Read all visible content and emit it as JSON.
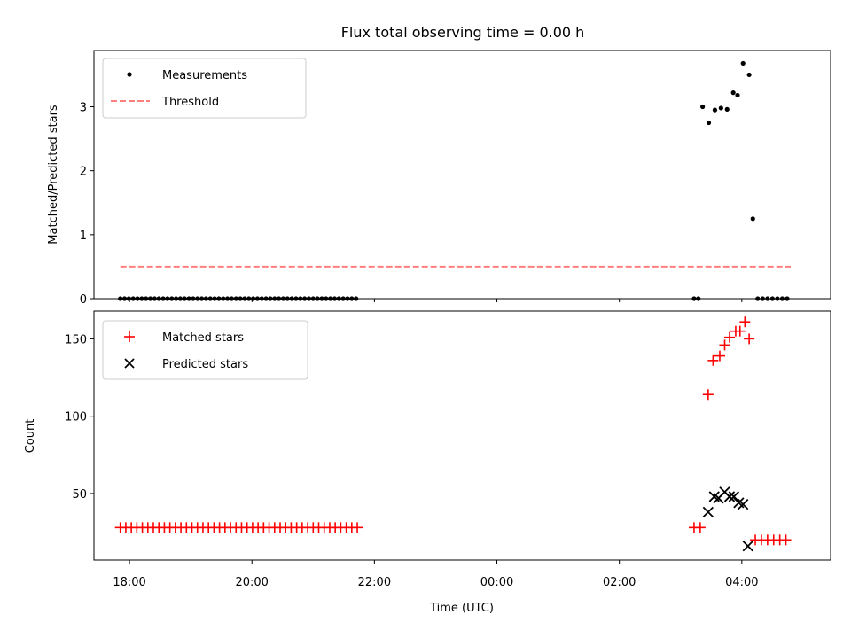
{
  "chart_data": [
    {
      "type": "scatter",
      "title": "Flux total observing time = 0.00 h",
      "ylabel": "Matched/Predicted stars",
      "xlabel": "",
      "ylim": [
        0,
        3.88
      ],
      "yticks": [
        0,
        1,
        2,
        3
      ],
      "legend_position": "upper-left",
      "series": [
        {
          "name": "Measurements",
          "marker": "dot",
          "color": "#000000",
          "x": [
            17.85,
            17.92,
            17.99,
            18.06,
            18.13,
            18.2,
            18.27,
            18.34,
            18.41,
            18.48,
            18.55,
            18.62,
            18.69,
            18.76,
            18.83,
            18.9,
            18.97,
            19.04,
            19.11,
            19.18,
            19.25,
            19.32,
            19.39,
            19.46,
            19.53,
            19.6,
            19.67,
            19.74,
            19.81,
            19.88,
            19.95,
            20.02,
            20.09,
            20.16,
            20.23,
            20.3,
            20.37,
            20.44,
            20.51,
            20.58,
            20.65,
            20.72,
            20.79,
            20.86,
            20.93,
            21.0,
            21.07,
            21.14,
            21.21,
            21.28,
            21.35,
            21.42,
            21.49,
            21.56,
            21.63,
            21.7,
            27.22,
            27.29,
            27.36,
            27.46,
            27.56,
            27.66,
            27.76,
            27.86,
            27.93,
            28.02,
            28.12,
            28.18,
            28.26,
            28.34,
            28.42,
            28.5,
            28.58,
            28.66,
            28.74
          ],
          "y": [
            0,
            0,
            0,
            0,
            0,
            0,
            0,
            0,
            0,
            0,
            0,
            0,
            0,
            0,
            0,
            0,
            0,
            0,
            0,
            0,
            0,
            0,
            0,
            0,
            0,
            0,
            0,
            0,
            0,
            0,
            0,
            0,
            0,
            0,
            0,
            0,
            0,
            0,
            0,
            0,
            0,
            0,
            0,
            0,
            0,
            0,
            0,
            0,
            0,
            0,
            0,
            0,
            0,
            0,
            0,
            0,
            0,
            0,
            3.0,
            2.75,
            2.95,
            2.98,
            2.96,
            3.22,
            3.18,
            3.68,
            3.5,
            1.25,
            0,
            0,
            0,
            0,
            0,
            0,
            0
          ]
        },
        {
          "name": "Threshold",
          "style": "dashed",
          "color": "#ff7f7f",
          "x": [
            17.85,
            28.8
          ],
          "y": [
            0.5,
            0.5
          ]
        }
      ]
    },
    {
      "type": "scatter",
      "title": "",
      "xlabel": "Time (UTC)",
      "ylabel": "Count",
      "ylim": [
        7,
        168
      ],
      "yticks": [
        50,
        100,
        150
      ],
      "xlim": [
        17.42,
        29.45
      ],
      "xticks": [
        18,
        20,
        22,
        24,
        26,
        28
      ],
      "xtick_labels": [
        "18:00",
        "20:00",
        "22:00",
        "00:00",
        "02:00",
        "04:00"
      ],
      "legend_position": "upper-left",
      "series": [
        {
          "name": "Matched stars",
          "marker": "plus",
          "color": "#ff0000",
          "x": [
            17.85,
            17.94,
            18.03,
            18.12,
            18.21,
            18.3,
            18.39,
            18.48,
            18.57,
            18.66,
            18.75,
            18.84,
            18.93,
            19.02,
            19.11,
            19.2,
            19.29,
            19.38,
            19.47,
            19.56,
            19.65,
            19.74,
            19.83,
            19.92,
            20.01,
            20.1,
            20.19,
            20.28,
            20.37,
            20.46,
            20.55,
            20.64,
            20.73,
            20.82,
            20.91,
            21.0,
            21.09,
            21.18,
            21.27,
            21.36,
            21.45,
            21.54,
            21.63,
            21.72,
            27.22,
            27.32,
            27.45,
            27.53,
            27.64,
            27.72,
            27.8,
            27.9,
            27.97,
            28.05,
            28.12,
            28.22,
            28.32,
            28.42,
            28.52,
            28.62,
            28.72
          ],
          "y": [
            28,
            28,
            28,
            28,
            28,
            28,
            28,
            28,
            28,
            28,
            28,
            28,
            28,
            28,
            28,
            28,
            28,
            28,
            28,
            28,
            28,
            28,
            28,
            28,
            28,
            28,
            28,
            28,
            28,
            28,
            28,
            28,
            28,
            28,
            28,
            28,
            28,
            28,
            28,
            28,
            28,
            28,
            28,
            28,
            28,
            28,
            114,
            136,
            139,
            146,
            151,
            155,
            155,
            161,
            150,
            20,
            20,
            20,
            20,
            20,
            20
          ]
        },
        {
          "name": "Predicted stars",
          "marker": "x",
          "color": "#000000",
          "x": [
            27.45,
            27.55,
            27.62,
            27.72,
            27.8,
            27.87,
            27.95,
            28.02,
            28.1
          ],
          "y": [
            38,
            48,
            47,
            51,
            48,
            48,
            44,
            43,
            16
          ]
        }
      ]
    }
  ]
}
